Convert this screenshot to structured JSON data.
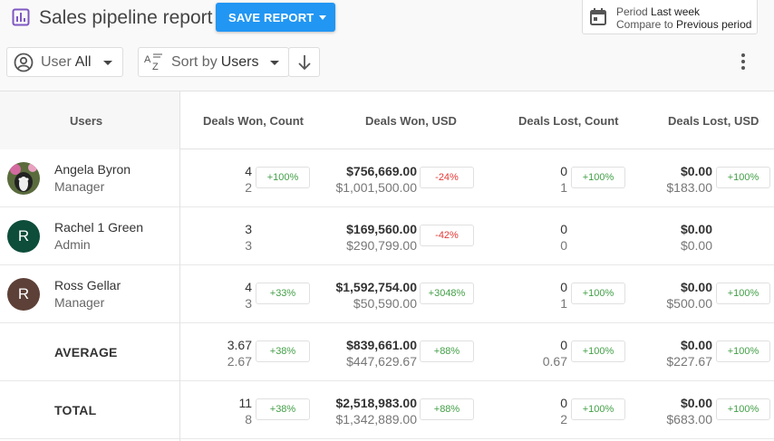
{
  "header": {
    "title": "Sales pipeline report",
    "save_label": "SAVE REPORT",
    "period_label": "Period",
    "period_value": "Last week",
    "compare_label": "Compare to",
    "compare_value": "Previous period"
  },
  "filters": {
    "user_label": "User",
    "user_value": "All",
    "sort_label": "Sort by",
    "sort_value": "Users"
  },
  "table": {
    "columns": [
      "Users",
      "Deals Won, Count",
      "Deals Won, USD",
      "Deals Lost, Count",
      "Deals Lost, USD"
    ],
    "rows": [
      {
        "name": "Angela Byron",
        "role": "Manager",
        "avatar": "photo",
        "won_count": "4",
        "won_count_prev": "2",
        "won_count_change": "+100%",
        "won_usd": "$756,669.00",
        "won_usd_prev": "$1,001,500.00",
        "won_usd_change": "-24%",
        "lost_count": "0",
        "lost_count_prev": "1",
        "lost_count_change": "+100%",
        "lost_usd": "$0.00",
        "lost_usd_prev": "$183.00",
        "lost_usd_change": "+100%"
      },
      {
        "name": "Rachel 1 Green",
        "role": "Admin",
        "avatar": "R",
        "avatar_color": "#0d4d3a",
        "won_count": "3",
        "won_count_prev": "3",
        "won_count_change": "",
        "won_usd": "$169,560.00",
        "won_usd_prev": "$290,799.00",
        "won_usd_change": "-42%",
        "lost_count": "0",
        "lost_count_prev": "0",
        "lost_count_change": "",
        "lost_usd": "$0.00",
        "lost_usd_prev": "$0.00",
        "lost_usd_change": ""
      },
      {
        "name": "Ross Gellar",
        "role": "Manager",
        "avatar": "R",
        "avatar_color": "#5d4037",
        "won_count": "4",
        "won_count_prev": "3",
        "won_count_change": "+33%",
        "won_usd": "$1,592,754.00",
        "won_usd_prev": "$50,590.00",
        "won_usd_change": "+3048%",
        "lost_count": "0",
        "lost_count_prev": "1",
        "lost_count_change": "+100%",
        "lost_usd": "$0.00",
        "lost_usd_prev": "$500.00",
        "lost_usd_change": "+100%"
      }
    ],
    "average": {
      "label": "AVERAGE",
      "won_count": "3.67",
      "won_count_prev": "2.67",
      "won_count_change": "+38%",
      "won_usd": "$839,661.00",
      "won_usd_prev": "$447,629.67",
      "won_usd_change": "+88%",
      "lost_count": "0",
      "lost_count_prev": "0.67",
      "lost_count_change": "+100%",
      "lost_usd": "$0.00",
      "lost_usd_prev": "$227.67",
      "lost_usd_change": "+100%"
    },
    "total": {
      "label": "TOTAL",
      "won_count": "11",
      "won_count_prev": "8",
      "won_count_change": "+38%",
      "won_usd": "$2,518,983.00",
      "won_usd_prev": "$1,342,889.00",
      "won_usd_change": "+88%",
      "lost_count": "0",
      "lost_count_prev": "2",
      "lost_count_change": "+100%",
      "lost_usd": "$0.00",
      "lost_usd_prev": "$683.00",
      "lost_usd_change": "+100%"
    }
  },
  "colors": {
    "accent": "#2196f3",
    "positive": "#43a047",
    "negative": "#e53935",
    "title_icon": "#7e57c2"
  },
  "icons": [
    "bar-chart-icon",
    "calendar-icon",
    "user-circle-icon",
    "sort-az-icon",
    "arrow-down-icon",
    "more-vert-icon",
    "chevron-down-icon"
  ]
}
